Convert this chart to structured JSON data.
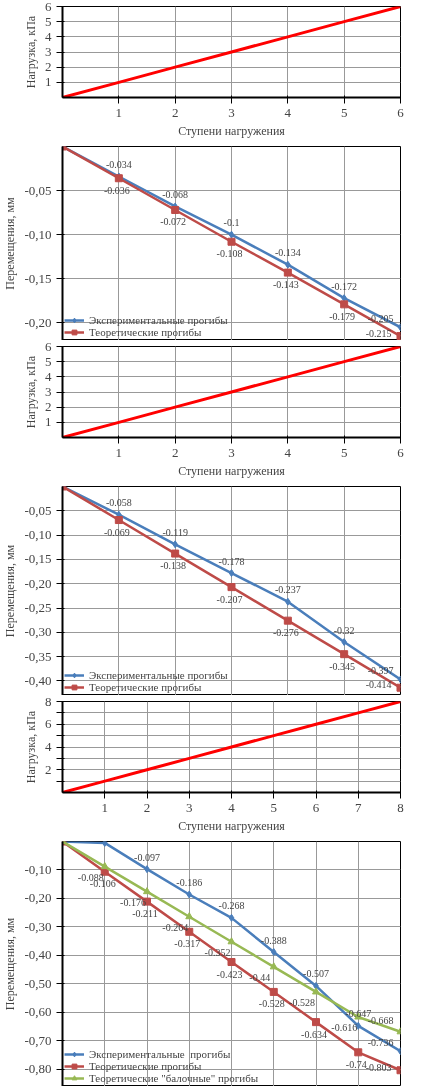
{
  "chart_data": [
    {
      "type": "line",
      "ylabel": "Нагрузка, кПа",
      "xlabel": "Ступени нагружения",
      "x": [
        0,
        1,
        2,
        3,
        4,
        5,
        6
      ],
      "xlim": [
        0,
        6
      ],
      "ylim": [
        0,
        6
      ],
      "xticks": [
        1,
        2,
        3,
        4,
        5,
        6
      ],
      "yticks": [
        1,
        2,
        3,
        4,
        5,
        6
      ],
      "grid": true,
      "legend": false,
      "marker": "none",
      "series": [
        {
          "color": "#ff0000",
          "values": [
            0,
            1,
            2,
            3,
            4,
            5,
            6
          ]
        }
      ]
    },
    {
      "type": "line",
      "ylabel": "Перемещения, мм",
      "x": [
        0,
        1,
        2,
        3,
        4,
        5,
        6
      ],
      "xlim": [
        0,
        6
      ],
      "ylim": [
        -0.22,
        0
      ],
      "xticks": [
        1,
        2,
        3,
        4,
        5,
        6
      ],
      "yticks": [
        {
          "value": -0.05,
          "label": "-0,05"
        },
        {
          "value": -0.1,
          "label": "-0,10"
        },
        {
          "value": -0.15,
          "label": "-0,15"
        },
        {
          "value": -0.2,
          "label": "-0,20"
        }
      ],
      "tick_labels": "y",
      "grid": true,
      "legend": "bottom left",
      "series": [
        {
          "name": "Экспериментальные прогибы",
          "color": "#4a7ebb",
          "marker": "diamond",
          "values": [
            0,
            -0.034,
            -0.068,
            -0.1,
            -0.134,
            -0.172,
            -0.205
          ],
          "value_labels": [
            null,
            "-0.034",
            "-0.068",
            "-0.1",
            "-0.134",
            "-0.172",
            "-0.205"
          ]
        },
        {
          "name": "Теоретические прогибы",
          "color": "#be4b48",
          "marker": "square",
          "values": [
            0,
            -0.036,
            -0.072,
            -0.108,
            -0.143,
            -0.179,
            -0.215
          ],
          "value_labels": [
            null,
            "-0.036",
            "-0.072",
            "-0.108",
            "-0.143",
            "-0.179",
            "-0.215"
          ]
        }
      ]
    },
    {
      "type": "line",
      "ylabel": "Нагрузка, кПа",
      "xlabel": "Ступени нагружения",
      "x": [
        0,
        1,
        2,
        3,
        4,
        5,
        6
      ],
      "xlim": [
        0,
        6
      ],
      "ylim": [
        0,
        6
      ],
      "xticks": [
        1,
        2,
        3,
        4,
        5,
        6
      ],
      "yticks": [
        1,
        2,
        3,
        4,
        5,
        6
      ],
      "grid": true,
      "legend": false,
      "marker": "none",
      "series": [
        {
          "color": "#ff0000",
          "values": [
            0,
            1,
            2,
            3,
            4,
            5,
            6
          ]
        }
      ]
    },
    {
      "type": "line",
      "ylabel": "Перемещения, мм",
      "x": [
        0,
        1,
        2,
        3,
        4,
        5,
        6
      ],
      "xlim": [
        0,
        6
      ],
      "ylim": [
        -0.43,
        0
      ],
      "xticks": [
        1,
        2,
        3,
        4,
        5,
        6
      ],
      "yticks": [
        {
          "value": -0.05,
          "label": "-0,05"
        },
        {
          "value": -0.1,
          "label": "-0,10"
        },
        {
          "value": -0.15,
          "label": "-0,15"
        },
        {
          "value": -0.2,
          "label": "-0,20"
        },
        {
          "value": -0.25,
          "label": "-0,25"
        },
        {
          "value": -0.3,
          "label": "-0,30"
        },
        {
          "value": -0.35,
          "label": "-0,35"
        },
        {
          "value": -0.4,
          "label": "-0,40"
        }
      ],
      "tick_labels": "y",
      "grid": true,
      "legend": "bottom left",
      "series": [
        {
          "name": "Экспериментальные прогибы",
          "color": "#4a7ebb",
          "marker": "diamond",
          "values": [
            0,
            -0.058,
            -0.119,
            -0.178,
            -0.237,
            -0.32,
            -0.397
          ],
          "value_labels": [
            null,
            "-0.058",
            "-0.119",
            "-0.178",
            "-0.237",
            "-0.32",
            "-0.397"
          ]
        },
        {
          "name": "Теоретические прогибы",
          "color": "#be4b48",
          "marker": "square",
          "values": [
            0,
            -0.069,
            -0.138,
            -0.207,
            -0.276,
            -0.345,
            -0.414
          ],
          "value_labels": [
            null,
            "-0.069",
            "-0.138",
            "-0.207",
            "-0.276",
            "-0.345",
            "-0.414"
          ]
        }
      ]
    },
    {
      "type": "line",
      "ylabel": "Нагрузка, кПа",
      "xlabel": "Ступени нагружения",
      "x": [
        0,
        1,
        2,
        3,
        4,
        5,
        6,
        7,
        8
      ],
      "xlim": [
        0,
        8
      ],
      "ylim": [
        0,
        8
      ],
      "xticks": [
        1,
        2,
        3,
        4,
        5,
        6,
        7,
        8
      ],
      "yticks": [
        {
          "value": 1,
          "label": null
        },
        2,
        {
          "value": 3,
          "label": null
        },
        4,
        {
          "value": 5,
          "label": null
        },
        6,
        {
          "value": 7,
          "label": null
        },
        8
      ],
      "grid": true,
      "legend": false,
      "marker": "none",
      "series": [
        {
          "color": "#ff0000",
          "values": [
            0,
            1,
            2,
            3,
            4,
            5,
            6,
            7,
            8
          ]
        }
      ]
    },
    {
      "type": "line",
      "ylabel": "Перемещения, мм",
      "x": [
        0,
        1,
        2,
        3,
        4,
        5,
        6,
        7,
        8
      ],
      "xlim": [
        0,
        8
      ],
      "ylim": [
        -0.86,
        0
      ],
      "xticks": [
        1,
        2,
        3,
        4,
        5,
        6,
        7,
        8
      ],
      "yticks": [
        {
          "value": -0.1,
          "label": "-0,10"
        },
        {
          "value": -0.2,
          "label": "-0,20"
        },
        {
          "value": -0.3,
          "label": "-0,30"
        },
        {
          "value": -0.4,
          "label": "-0,40"
        },
        {
          "value": -0.5,
          "label": "-0,50"
        },
        {
          "value": -0.6,
          "label": "-0,60"
        },
        {
          "value": -0.7,
          "label": "-0,70"
        },
        {
          "value": -0.8,
          "label": "-0,80"
        }
      ],
      "tick_labels": "y",
      "grid": true,
      "legend": "bottom left",
      "series": [
        {
          "name": "Экспериментальные  прогибы",
          "color": "#4a7ebb",
          "marker": "diamond",
          "values": [
            0,
            -0.005,
            -0.097,
            -0.186,
            -0.268,
            -0.388,
            -0.507,
            -0.647,
            -0.736
          ],
          "value_labels": [
            null,
            null,
            "-0.097",
            "-0.186",
            "-0.268",
            "-0.388",
            "-0.507",
            "-0.647",
            "-0.736"
          ]
        },
        {
          "name": "Теоретические прогибы",
          "color": "#be4b48",
          "marker": "square",
          "values": [
            0,
            -0.106,
            -0.211,
            -0.317,
            -0.423,
            -0.528,
            -0.634,
            -0.74,
            -0.803
          ],
          "value_labels": [
            null,
            "-0.106",
            "-0.211",
            "-0.317",
            "-0.423",
            "-0.528",
            "-0.634",
            "-0.74",
            "-0.803"
          ]
        },
        {
          "name": "Теоретические \"балочные\" прогибы",
          "color": "#98b954",
          "marker": "triangle",
          "values": [
            0,
            -0.088,
            -0.176,
            -0.264,
            -0.352,
            -0.44,
            -0.528,
            -0.616,
            -0.668
          ],
          "value_labels": [
            null,
            "-0.088",
            "-0.176",
            "-0.264",
            "-0.352",
            "-0.44",
            "-0.528",
            "-0.616",
            "-0.668"
          ]
        }
      ]
    }
  ]
}
